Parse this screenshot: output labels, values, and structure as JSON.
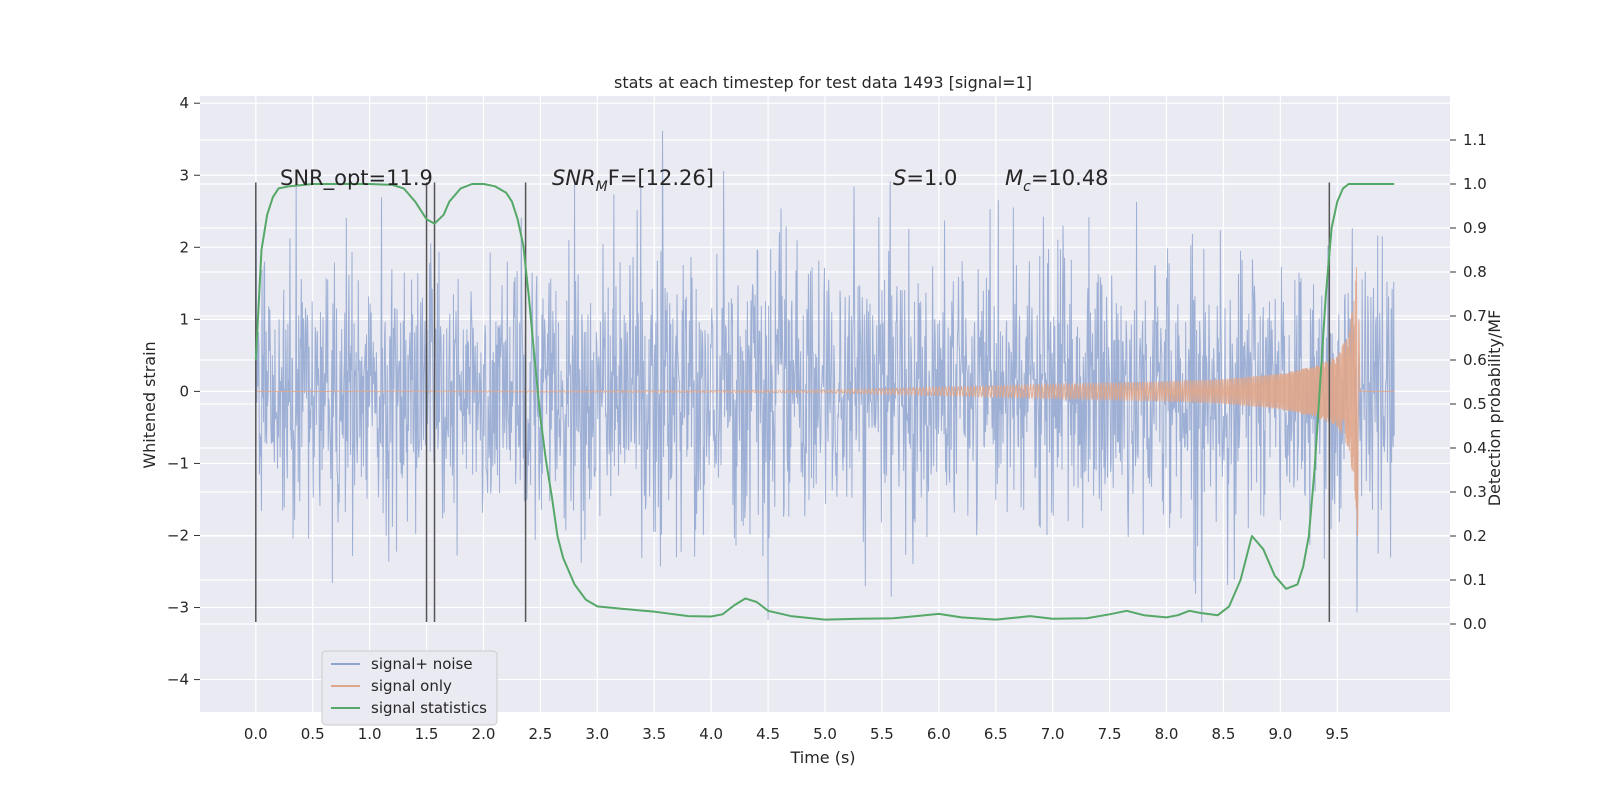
{
  "chart_data": {
    "type": "line",
    "title": "stats at each timestep for test data 1493 [signal=1]",
    "xlabel": "Time (s)",
    "ylabel": "Whitened strain",
    "y2label": "Detection probability/MF",
    "xlim": [
      -0.49,
      10.49
    ],
    "ylim": [
      -4.45,
      4.1
    ],
    "y2lim": [
      -0.2,
      1.2
    ],
    "x_ticks": [
      "0.0",
      "0.5",
      "1.0",
      "1.5",
      "2.0",
      "2.5",
      "3.0",
      "3.5",
      "4.0",
      "4.5",
      "5.0",
      "5.5",
      "6.0",
      "6.5",
      "7.0",
      "7.5",
      "8.0",
      "8.5",
      "9.0",
      "9.5"
    ],
    "y_ticks": [
      "4",
      "3",
      "2",
      "1",
      "0",
      "−1",
      "−2",
      "−3",
      "−4"
    ],
    "y2_ticks": [
      "1.1",
      "1.0",
      "0.9",
      "0.8",
      "0.7",
      "0.6",
      "0.5",
      "0.4",
      "0.3",
      "0.2",
      "0.1",
      "0.0"
    ],
    "grid": true,
    "legend_position": "lower-left",
    "annotations": {
      "snr_opt": "SNR_opt=11.9",
      "snr_mf_main": "SNR",
      "snr_mf_sub": "M",
      "snr_mf_rest": "F=[12.26]",
      "s_main": "S",
      "s_rest": "=1.0",
      "mc_main": "M",
      "mc_sub": "c",
      "mc_rest": "=10.48"
    },
    "markers_x": [
      0.0,
      1.5,
      1.57,
      2.37,
      9.43
    ],
    "series": [
      {
        "name": "signal+ noise",
        "color": "#8fa4cf",
        "description_range": [
          -3.6,
          3.7
        ],
        "x": [
          0.0,
          10.0
        ],
        "envelope_upper": 2.0,
        "envelope_lower": -2.0
      },
      {
        "name": "signal only",
        "color": "#e0a68a",
        "x": [
          0.0,
          5.0,
          6.0,
          7.0,
          8.0,
          8.5,
          9.0,
          9.3,
          9.5,
          9.6,
          9.65,
          9.68,
          9.7,
          10.0
        ],
        "amplitude": [
          0.0,
          0.02,
          0.06,
          0.1,
          0.14,
          0.17,
          0.25,
          0.35,
          0.5,
          0.8,
          1.3,
          2.1,
          0.02,
          0.0
        ]
      },
      {
        "name": "signal statistics",
        "color": "#55a868",
        "axis": "right",
        "x": [
          0.0,
          0.05,
          0.1,
          0.15,
          0.2,
          0.3,
          0.5,
          0.8,
          1.0,
          1.2,
          1.3,
          1.4,
          1.5,
          1.57,
          1.65,
          1.7,
          1.8,
          1.9,
          2.0,
          2.1,
          2.2,
          2.25,
          2.3,
          2.35,
          2.4,
          2.45,
          2.5,
          2.55,
          2.6,
          2.65,
          2.7,
          2.8,
          2.9,
          3.0,
          3.2,
          3.5,
          3.8,
          4.0,
          4.1,
          4.2,
          4.3,
          4.4,
          4.5,
          4.7,
          5.0,
          5.3,
          5.6,
          5.8,
          6.0,
          6.2,
          6.5,
          6.7,
          6.8,
          7.0,
          7.3,
          7.5,
          7.65,
          7.8,
          8.0,
          8.1,
          8.2,
          8.3,
          8.45,
          8.55,
          8.65,
          8.75,
          8.85,
          8.95,
          9.05,
          9.15,
          9.2,
          9.25,
          9.3,
          9.35,
          9.4,
          9.45,
          9.5,
          9.55,
          9.6,
          9.7,
          10.0
        ],
        "values": [
          0.6,
          0.85,
          0.93,
          0.97,
          0.99,
          0.995,
          1.0,
          1.0,
          1.0,
          0.998,
          0.99,
          0.96,
          0.92,
          0.91,
          0.93,
          0.96,
          0.99,
          1.0,
          1.0,
          0.995,
          0.98,
          0.96,
          0.92,
          0.86,
          0.74,
          0.6,
          0.47,
          0.37,
          0.29,
          0.2,
          0.15,
          0.09,
          0.055,
          0.04,
          0.035,
          0.028,
          0.018,
          0.017,
          0.022,
          0.042,
          0.058,
          0.05,
          0.03,
          0.018,
          0.01,
          0.012,
          0.013,
          0.018,
          0.023,
          0.015,
          0.01,
          0.015,
          0.018,
          0.012,
          0.013,
          0.022,
          0.03,
          0.02,
          0.015,
          0.02,
          0.03,
          0.025,
          0.02,
          0.04,
          0.1,
          0.2,
          0.17,
          0.11,
          0.08,
          0.09,
          0.13,
          0.2,
          0.35,
          0.55,
          0.75,
          0.9,
          0.96,
          0.99,
          1.0,
          1.0,
          1.0
        ]
      }
    ]
  }
}
